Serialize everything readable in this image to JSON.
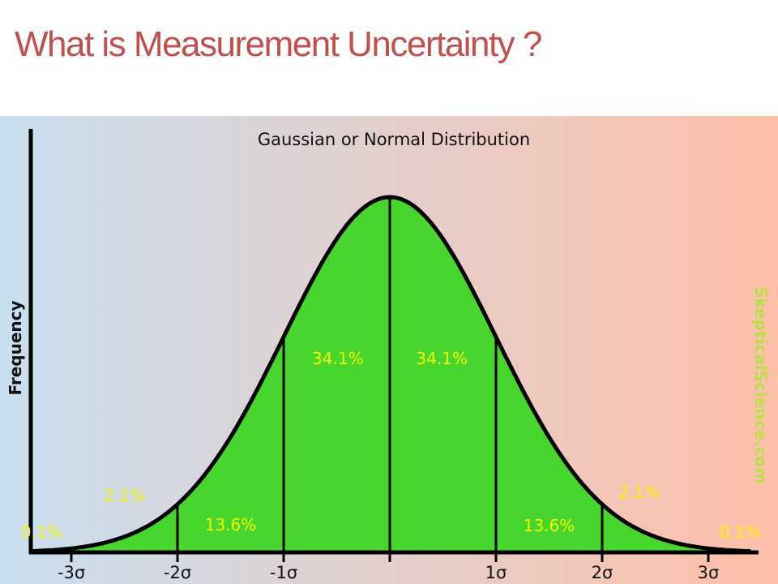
{
  "slide": {
    "title": "What is Measurement Uncertainty ?"
  },
  "figure": {
    "background_gradient": [
      "#c8dff0",
      "#ffbfa8"
    ],
    "curve_fill": "#47d62d",
    "label_color": "#f5f500",
    "watermark": "SkepticalScience.com",
    "watermark_color": "#b8e04a"
  },
  "chart_data": {
    "type": "area",
    "title": "Gaussian or Normal Distribution",
    "ylabel": "Frequency",
    "xlabel": "",
    "x_ticks": [
      {
        "value": -3,
        "label": "-3σ"
      },
      {
        "value": -2,
        "label": "-2σ"
      },
      {
        "value": -1,
        "label": "-1σ"
      },
      {
        "value": 0,
        "label": ""
      },
      {
        "value": 1,
        "label": "1σ"
      },
      {
        "value": 2,
        "label": "2σ"
      },
      {
        "value": 3,
        "label": "3σ"
      }
    ],
    "xlim": [
      -3.4,
      3.4
    ],
    "boundaries": [
      -2,
      -1,
      0,
      1,
      2
    ],
    "regions": [
      {
        "from": -3.4,
        "to": -3,
        "percent": "0.1%"
      },
      {
        "from": -3,
        "to": -2,
        "percent": "2.1%"
      },
      {
        "from": -2,
        "to": -1,
        "percent": "13.6%"
      },
      {
        "from": -1,
        "to": 0,
        "percent": "34.1%"
      },
      {
        "from": 0,
        "to": 1,
        "percent": "34.1%"
      },
      {
        "from": 1,
        "to": 2,
        "percent": "13.6%"
      },
      {
        "from": 2,
        "to": 3,
        "percent": "2.1%"
      },
      {
        "from": 3,
        "to": 3.4,
        "percent": "0.1%"
      }
    ]
  }
}
